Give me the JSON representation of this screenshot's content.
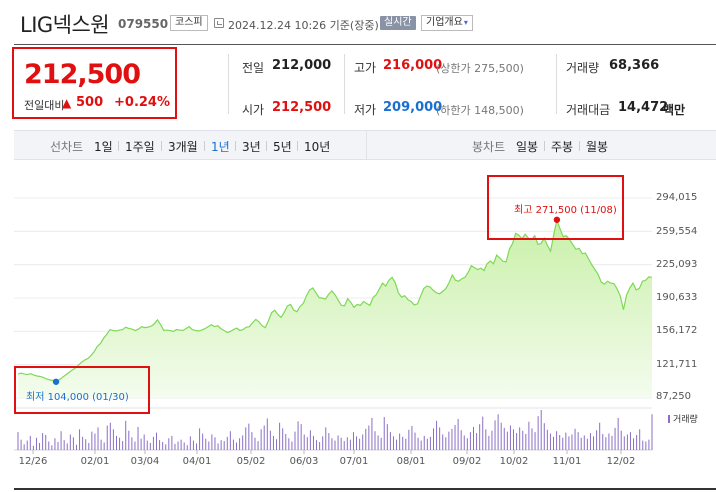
{
  "header": {
    "company_name": "LIG넥스원",
    "company_code": "079550",
    "market": "코스피",
    "datetime": "2024.12.24 10:26 기준(장중)",
    "realtime": "실시간",
    "company_info": "기업개요"
  },
  "price": {
    "current": "212,500",
    "change_label": "전일대비",
    "change_amount": "500",
    "change_pct": "+0.24%",
    "direction": "up"
  },
  "stats": {
    "prev_close": {
      "label": "전일",
      "value": "212,000"
    },
    "high": {
      "label": "고가",
      "value": "216,000",
      "note": "(상한가 275,500)"
    },
    "volume": {
      "label": "거래량",
      "value": "68,366"
    },
    "open": {
      "label": "시가",
      "value": "212,500"
    },
    "low": {
      "label": "저가",
      "value": "209,000",
      "note": "(하한가 148,500)"
    },
    "trade_value": {
      "label": "거래대금",
      "value": "14,472",
      "unit": "백만"
    }
  },
  "toolbar": {
    "line_chart_label": "선차트",
    "periods": [
      "1일",
      "1주일",
      "3개월",
      "1년",
      "3년",
      "5년",
      "10년"
    ],
    "active_period": "1년",
    "candle_chart_label": "봉차트",
    "candle_periods": [
      "일봉",
      "주봉",
      "월봉"
    ]
  },
  "chart_data": {
    "type": "area",
    "y_ticks": [
      "294,015",
      "259,554",
      "225,093",
      "190,633",
      "156,172",
      "121,711",
      "87,250"
    ],
    "x_ticks": [
      "12/26",
      "02/01",
      "03/04",
      "04/01",
      "05/02",
      "06/03",
      "07/01",
      "08/01",
      "09/02",
      "10/02",
      "11/01",
      "12/02"
    ],
    "ylim": [
      87250,
      294015
    ],
    "max_label": "최고 271,500 (11/08)",
    "min_label": "최저 104,000 (01/30)",
    "volume_legend": "거래량",
    "colors": {
      "line": "#7ed957",
      "fill_top": "#c9f0a8",
      "fill_bottom": "#f4fcee",
      "volume": "#8b6fc7",
      "max": "#e01010",
      "min": "#1a6fd0"
    },
    "series": [
      {
        "values": [
          112000,
          113000,
          112000,
          111500,
          112500,
          111000,
          110000,
          109500,
          108500,
          107000,
          106000,
          105500,
          104000,
          106000,
          108500,
          111000,
          113500,
          116000,
          118000,
          121000,
          124000,
          126500,
          128000,
          131000,
          135000,
          140500,
          143500,
          149000,
          153000,
          158000,
          157000,
          156500,
          157500,
          158000,
          160500,
          159000,
          158500,
          157000,
          158500,
          161000,
          160000,
          160500,
          161500,
          164000,
          168000,
          163000,
          157000,
          157500,
          157000,
          156000,
          158000,
          157500,
          157000,
          159000,
          161000,
          158000,
          157000,
          156500,
          157500,
          159000,
          161000,
          163000,
          161000,
          162000,
          159000,
          157000,
          155000,
          156000,
          158000,
          159500,
          157000,
          158000,
          160500,
          161000,
          165000,
          168500,
          166000,
          162000,
          160000,
          167000,
          175500,
          178000,
          173500,
          170500,
          176000,
          182500,
          184000,
          178000,
          176500,
          182000,
          185000,
          193000,
          199000,
          201000,
          196000,
          191000,
          190500,
          189500,
          194500,
          198000,
          194000,
          188500,
          183000,
          182500,
          190000,
          186000,
          181000,
          184000,
          183000,
          187000,
          185000,
          183000,
          191000,
          194000,
          200000,
          206000,
          203000,
          209000,
          212000,
          206500,
          196000,
          191500,
          193000,
          189000,
          187000,
          183500,
          184500,
          192500,
          200500,
          203000,
          202000,
          198500,
          196000,
          195000,
          197500,
          200500,
          206500,
          214500,
          209000,
          208000,
          210500,
          212000,
          217000,
          224000,
          222000,
          220000,
          221500,
          219000,
          226000,
          229000,
          226000,
          235000,
          232000,
          228500,
          228000,
          241000,
          247000,
          257500,
          255500,
          252000,
          256500,
          252500,
          251000,
          255000,
          246000,
          247000,
          252500,
          245000,
          239000,
          256000,
          271500,
          262000,
          254000,
          255000,
          251000,
          246000,
          241000,
          242000,
          236500,
          237000,
          231000,
          225000,
          220000,
          215000,
          207000,
          205000,
          208000,
          206000,
          205500,
          200000,
          192500,
          178500,
          194000,
          201000,
          206000,
          199000,
          200500,
          208000,
          209000,
          212500,
          212000
        ]
      }
    ],
    "volume": [
      38,
      22,
      12,
      20,
      30,
      9,
      26,
      15,
      36,
      32,
      18,
      10,
      25,
      17,
      40,
      21,
      14,
      33,
      27,
      11,
      44,
      28,
      23,
      15,
      39,
      35,
      48,
      22,
      16,
      52,
      58,
      44,
      30,
      26,
      19,
      62,
      41,
      27,
      18,
      49,
      24,
      33,
      20,
      15,
      28,
      37,
      21,
      17,
      12,
      25,
      30,
      13,
      18,
      22,
      16,
      10,
      29,
      20,
      14,
      46,
      35,
      24,
      18,
      33,
      27,
      14,
      21,
      19,
      28,
      40,
      22,
      16,
      25,
      31,
      48,
      56,
      38,
      26,
      19,
      44,
      52,
      67,
      41,
      30,
      23,
      58,
      46,
      34,
      25,
      18,
      39,
      61,
      55,
      33,
      27,
      42,
      30,
      21,
      17,
      29,
      48,
      36,
      25,
      20,
      31,
      26,
      19,
      27,
      22,
      38,
      29,
      24,
      33,
      45,
      52,
      68,
      40,
      31,
      26,
      70,
      55,
      38,
      29,
      22,
      35,
      28,
      24,
      43,
      51,
      37,
      26,
      20,
      30,
      24,
      28,
      46,
      62,
      48,
      33,
      27,
      39,
      45,
      53,
      66,
      42,
      31,
      25,
      38,
      49,
      36,
      55,
      71,
      44,
      30,
      41,
      63,
      76,
      58,
      47,
      39,
      52,
      44,
      36,
      48,
      41,
      34,
      60,
      46,
      38,
      72,
      85,
      57,
      43,
      35,
      28,
      40,
      32,
      26,
      37,
      29,
      33,
      45,
      38,
      26,
      31,
      24,
      36,
      29,
      42,
      58,
      34,
      27,
      35,
      30,
      47,
      68,
      41,
      29,
      33,
      38,
      25,
      32,
      44,
      20,
      18,
      22,
      76
    ]
  }
}
